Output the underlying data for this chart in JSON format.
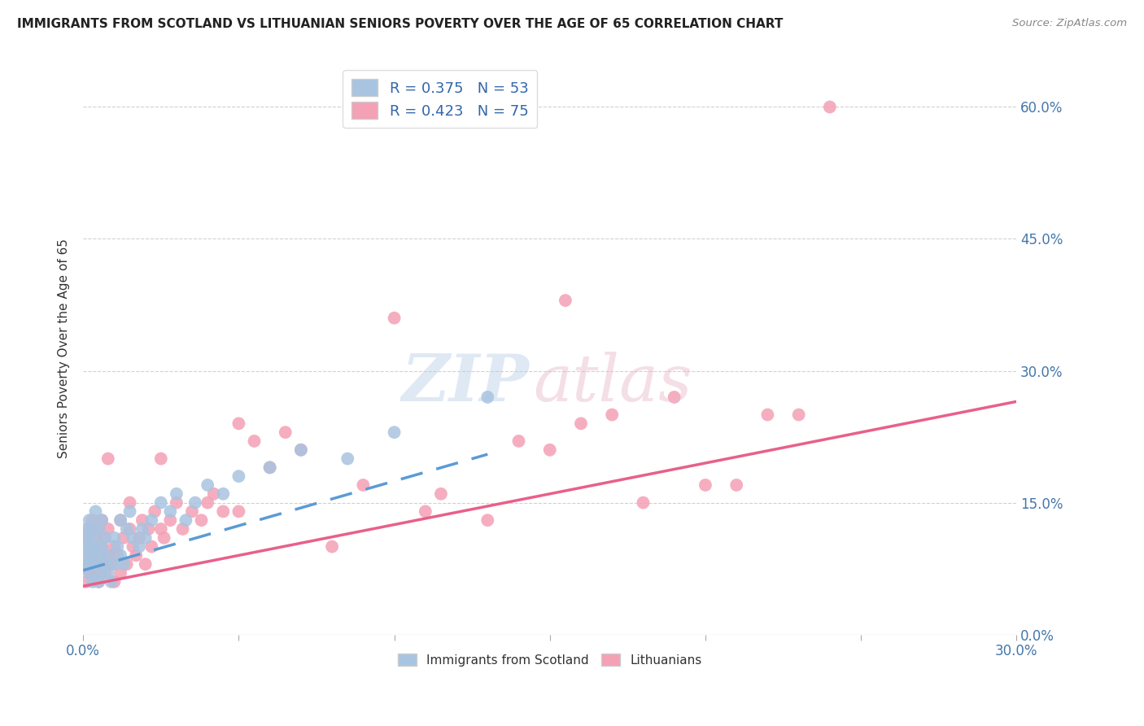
{
  "title": "IMMIGRANTS FROM SCOTLAND VS LITHUANIAN SENIORS POVERTY OVER THE AGE OF 65 CORRELATION CHART",
  "source": "Source: ZipAtlas.com",
  "ylabel": "Seniors Poverty Over the Age of 65",
  "xlim": [
    0.0,
    0.3
  ],
  "ylim": [
    0.0,
    0.65
  ],
  "yticks": [
    0.0,
    0.15,
    0.3,
    0.45,
    0.6
  ],
  "ytick_labels": [
    "0.0%",
    "15.0%",
    "30.0%",
    "45.0%",
    "60.0%"
  ],
  "xticks": [
    0.0,
    0.05,
    0.1,
    0.15,
    0.2,
    0.25,
    0.3
  ],
  "xtick_labels": [
    "0.0%",
    "",
    "",
    "",
    "",
    "",
    "30.0%"
  ],
  "scotland_R": 0.375,
  "scotland_N": 53,
  "lithuanian_R": 0.423,
  "lithuanian_N": 75,
  "scotland_color": "#a8c4e0",
  "scottish_line_color": "#5b9bd5",
  "lithuanian_color": "#f4a0b5",
  "lithuanian_line_color": "#e8608a",
  "scotland_points_x": [
    0.001,
    0.001,
    0.001,
    0.001,
    0.001,
    0.002,
    0.002,
    0.002,
    0.002,
    0.003,
    0.003,
    0.003,
    0.003,
    0.004,
    0.004,
    0.004,
    0.005,
    0.005,
    0.005,
    0.006,
    0.006,
    0.006,
    0.007,
    0.007,
    0.008,
    0.008,
    0.009,
    0.01,
    0.01,
    0.011,
    0.012,
    0.012,
    0.013,
    0.014,
    0.015,
    0.016,
    0.018,
    0.019,
    0.02,
    0.022,
    0.025,
    0.028,
    0.03,
    0.033,
    0.036,
    0.04,
    0.045,
    0.05,
    0.06,
    0.07,
    0.085,
    0.1,
    0.13
  ],
  "scotland_points_y": [
    0.1,
    0.08,
    0.12,
    0.09,
    0.11,
    0.07,
    0.1,
    0.13,
    0.08,
    0.06,
    0.09,
    0.11,
    0.12,
    0.08,
    0.1,
    0.14,
    0.06,
    0.09,
    0.12,
    0.07,
    0.1,
    0.13,
    0.08,
    0.11,
    0.07,
    0.09,
    0.06,
    0.08,
    0.11,
    0.1,
    0.13,
    0.09,
    0.08,
    0.12,
    0.14,
    0.11,
    0.1,
    0.12,
    0.11,
    0.13,
    0.15,
    0.14,
    0.16,
    0.13,
    0.15,
    0.17,
    0.16,
    0.18,
    0.19,
    0.21,
    0.2,
    0.23,
    0.27
  ],
  "lithuanian_points_x": [
    0.001,
    0.001,
    0.001,
    0.002,
    0.002,
    0.002,
    0.003,
    0.003,
    0.003,
    0.004,
    0.004,
    0.004,
    0.005,
    0.005,
    0.006,
    0.006,
    0.006,
    0.007,
    0.007,
    0.008,
    0.008,
    0.009,
    0.01,
    0.01,
    0.011,
    0.012,
    0.012,
    0.013,
    0.014,
    0.015,
    0.016,
    0.017,
    0.018,
    0.019,
    0.02,
    0.021,
    0.022,
    0.023,
    0.025,
    0.026,
    0.028,
    0.03,
    0.032,
    0.035,
    0.038,
    0.04,
    0.042,
    0.045,
    0.05,
    0.055,
    0.06,
    0.065,
    0.07,
    0.08,
    0.09,
    0.1,
    0.11,
    0.13,
    0.15,
    0.17,
    0.19,
    0.21,
    0.23,
    0.115,
    0.155,
    0.14,
    0.16,
    0.18,
    0.2,
    0.22,
    0.008,
    0.015,
    0.025,
    0.05,
    0.24
  ],
  "lithuanian_points_y": [
    0.08,
    0.06,
    0.11,
    0.09,
    0.07,
    0.12,
    0.1,
    0.08,
    0.13,
    0.07,
    0.11,
    0.09,
    0.06,
    0.12,
    0.08,
    0.1,
    0.13,
    0.07,
    0.11,
    0.09,
    0.12,
    0.08,
    0.06,
    0.1,
    0.09,
    0.13,
    0.07,
    0.11,
    0.08,
    0.12,
    0.1,
    0.09,
    0.11,
    0.13,
    0.08,
    0.12,
    0.1,
    0.14,
    0.12,
    0.11,
    0.13,
    0.15,
    0.12,
    0.14,
    0.13,
    0.15,
    0.16,
    0.14,
    0.24,
    0.22,
    0.19,
    0.23,
    0.21,
    0.1,
    0.17,
    0.36,
    0.14,
    0.13,
    0.21,
    0.25,
    0.27,
    0.17,
    0.25,
    0.16,
    0.38,
    0.22,
    0.24,
    0.15,
    0.17,
    0.25,
    0.2,
    0.15,
    0.2,
    0.14,
    0.6
  ],
  "scot_line_x0": 0.0,
  "scot_line_x1": 0.13,
  "scot_line_y0": 0.073,
  "scot_line_y1": 0.205,
  "lith_line_x0": 0.0,
  "lith_line_x1": 0.3,
  "lith_line_y0": 0.055,
  "lith_line_y1": 0.265
}
